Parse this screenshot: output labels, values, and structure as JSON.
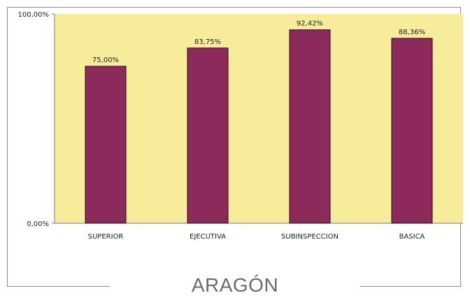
{
  "caption": "ARAGÓN",
  "chart_data": {
    "type": "bar",
    "title": "",
    "xlabel": "",
    "ylabel": "",
    "ylim": [
      0,
      100
    ],
    "y_ticks": [
      "0,00%",
      "100,00%"
    ],
    "grid": false,
    "categories": [
      "SUPERIOR",
      "EJECUTIVA",
      "SUBINSPECCION",
      "BASICA"
    ],
    "values": [
      75.0,
      83.75,
      92.42,
      88.36
    ],
    "value_labels": [
      "75,00%",
      "83,75%",
      "92,42%",
      "88,36%"
    ],
    "colors": {
      "plot_bg": "#f7ec9a",
      "bar": "#8c2a5c",
      "bar_edge": "#2a0d1c"
    }
  }
}
